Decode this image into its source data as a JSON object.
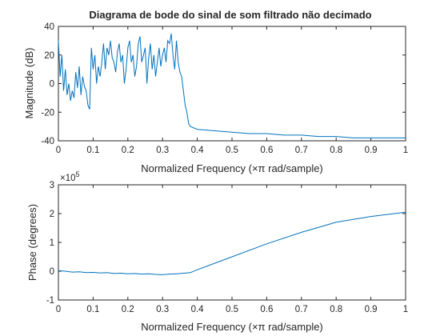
{
  "chart_data": [
    {
      "type": "line",
      "title": "Diagrama de bode do sinal de som filtrado não decimado",
      "xlabel": "Normalized Frequency  (×π rad/sample)",
      "ylabel": "Magnitude (dB)",
      "xlim": [
        0,
        1
      ],
      "ylim": [
        -40,
        40
      ],
      "xticks": [
        0,
        0.1,
        0.2,
        0.3,
        0.4,
        0.5,
        0.6,
        0.7,
        0.8,
        0.9,
        1
      ],
      "xtick_labels": [
        "0",
        "0.1",
        "0.2",
        "0.3",
        "0.4",
        "0.5",
        "0.6",
        "0.7",
        "0.8",
        "0.9",
        "1"
      ],
      "yticks": [
        -40,
        -20,
        0,
        20,
        40
      ],
      "ytick_labels": [
        "-40",
        "-20",
        "0",
        "20",
        "40"
      ],
      "grid": false,
      "line_color": "#0072BD",
      "series": [
        {
          "x": [
            0,
            0.005,
            0.01,
            0.015,
            0.02,
            0.025,
            0.03,
            0.035,
            0.04,
            0.045,
            0.05,
            0.055,
            0.06,
            0.065,
            0.07,
            0.075,
            0.08,
            0.085,
            0.09,
            0.095,
            0.1,
            0.105,
            0.11,
            0.115,
            0.12,
            0.125,
            0.13,
            0.135,
            0.14,
            0.145,
            0.15,
            0.155,
            0.16,
            0.165,
            0.17,
            0.175,
            0.18,
            0.185,
            0.19,
            0.195,
            0.2,
            0.205,
            0.21,
            0.215,
            0.22,
            0.225,
            0.23,
            0.235,
            0.24,
            0.245,
            0.25,
            0.255,
            0.26,
            0.265,
            0.27,
            0.275,
            0.28,
            0.285,
            0.29,
            0.295,
            0.3,
            0.305,
            0.31,
            0.315,
            0.32,
            0.325,
            0.33,
            0.335,
            0.34,
            0.345,
            0.35,
            0.355,
            0.36,
            0.365,
            0.37,
            0.375,
            0.38,
            0.4,
            0.45,
            0.5,
            0.55,
            0.6,
            0.65,
            0.7,
            0.75,
            0.8,
            0.85,
            0.9,
            0.95,
            1.0
          ],
          "y": [
            30,
            5,
            20,
            -5,
            10,
            -8,
            0,
            -12,
            -5,
            -10,
            8,
            -3,
            12,
            -8,
            5,
            -2,
            -5,
            -15,
            -18,
            25,
            10,
            20,
            0,
            12,
            5,
            15,
            28,
            10,
            25,
            20,
            30,
            18,
            15,
            8,
            22,
            28,
            15,
            20,
            0,
            10,
            25,
            30,
            15,
            20,
            5,
            12,
            28,
            33,
            15,
            20,
            25,
            0,
            18,
            28,
            10,
            20,
            5,
            15,
            25,
            12,
            20,
            25,
            15,
            30,
            28,
            35,
            20,
            10,
            30,
            15,
            8,
            5,
            -5,
            -15,
            -20,
            -28,
            -30,
            -32,
            -33,
            -34,
            -35,
            -35,
            -36,
            -36,
            -37,
            -37,
            -38,
            -38,
            -38,
            -38
          ]
        }
      ]
    },
    {
      "type": "line",
      "title": "",
      "xlabel": "Normalized Frequency  (×π rad/sample)",
      "ylabel": "Phase (degrees)",
      "y_exponent": "×10",
      "y_exponent_power": "5",
      "xlim": [
        0,
        1
      ],
      "ylim": [
        -1,
        3
      ],
      "xticks": [
        0,
        0.1,
        0.2,
        0.3,
        0.4,
        0.5,
        0.6,
        0.7,
        0.8,
        0.9,
        1
      ],
      "xtick_labels": [
        "0",
        "0.1",
        "0.2",
        "0.3",
        "0.4",
        "0.5",
        "0.6",
        "0.7",
        "0.8",
        "0.9",
        "1"
      ],
      "yticks": [
        -1,
        0,
        1,
        2,
        3
      ],
      "ytick_labels": [
        "-1",
        "0",
        "1",
        "2",
        "3"
      ],
      "grid": false,
      "line_color": "#0072BD",
      "series": [
        {
          "x": [
            0,
            0.02,
            0.04,
            0.06,
            0.08,
            0.1,
            0.12,
            0.14,
            0.16,
            0.18,
            0.2,
            0.22,
            0.24,
            0.26,
            0.28,
            0.3,
            0.32,
            0.34,
            0.36,
            0.38,
            0.4,
            0.5,
            0.6,
            0.7,
            0.8,
            0.9,
            1.0
          ],
          "y": [
            0.02,
            0.0,
            -0.03,
            -0.02,
            -0.05,
            -0.04,
            -0.06,
            -0.05,
            -0.08,
            -0.07,
            -0.09,
            -0.08,
            -0.1,
            -0.09,
            -0.11,
            -0.12,
            -0.1,
            -0.09,
            -0.07,
            -0.05,
            0.05,
            0.5,
            0.95,
            1.35,
            1.7,
            1.9,
            2.05
          ]
        }
      ]
    }
  ]
}
